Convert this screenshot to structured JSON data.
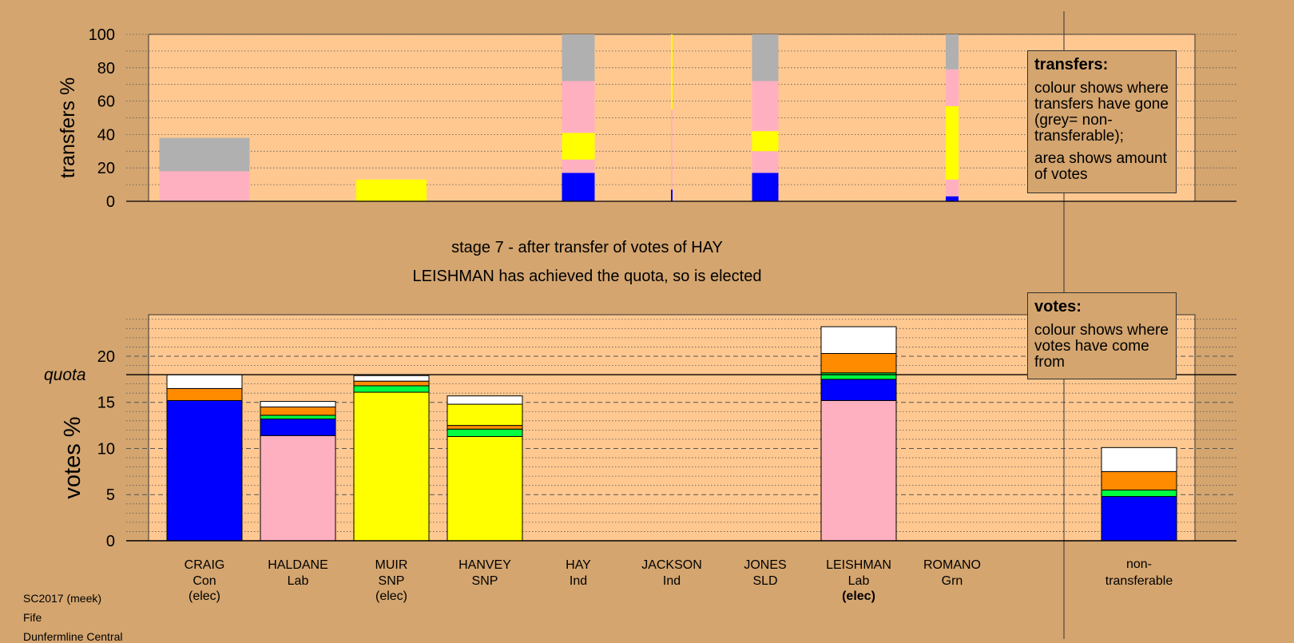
{
  "chart_data": {
    "type": "bar",
    "stage_text": "stage 7 - after transfer of votes of HAY",
    "elected_text": "LEISHMAN has achieved the quota, so is elected",
    "categories": [
      {
        "name": "CRAIG",
        "party": "Con",
        "status": "(elec)",
        "status_bold": false
      },
      {
        "name": "HALDANE",
        "party": "Lab",
        "status": "",
        "status_bold": false
      },
      {
        "name": "MUIR",
        "party": "SNP",
        "status": "(elec)",
        "status_bold": false
      },
      {
        "name": "HANVEY",
        "party": "SNP",
        "status": "",
        "status_bold": false
      },
      {
        "name": "HAY",
        "party": "Ind",
        "status": "",
        "status_bold": false
      },
      {
        "name": "JACKSON",
        "party": "Ind",
        "status": "",
        "status_bold": false
      },
      {
        "name": "JONES",
        "party": "SLD",
        "status": "",
        "status_bold": false
      },
      {
        "name": "LEISHMAN",
        "party": "Lab",
        "status": "(elec)",
        "status_bold": true
      },
      {
        "name": "ROMANO",
        "party": "Grn",
        "status": "",
        "status_bold": false
      }
    ],
    "nontransferable_label": [
      "non-",
      "transferable"
    ],
    "colors": {
      "con": "#0000ff",
      "lab": "#ffb0c0",
      "snp": "#ffff00",
      "lab2": "#00ff40",
      "ind": "#ff8c00",
      "other": "#ffffff",
      "grey": "#b0b0b0",
      "plot_bg": "#ffc890",
      "page_bg": "#d4a56f"
    },
    "transfers_chart": {
      "ylabel": "transfers %",
      "ylim": [
        0,
        100
      ],
      "yticks": [
        0,
        20,
        40,
        60,
        80,
        100
      ],
      "series_order": [
        "con",
        "lab",
        "snp",
        "grey"
      ],
      "columns": [
        {
          "category": "CRAIG",
          "segments": [
            {
              "color": "lab",
              "value": 18
            },
            {
              "color": "grey",
              "value": 20
            }
          ]
        },
        {
          "category": "MUIR",
          "segments": [
            {
              "color": "snp",
              "value": 13
            }
          ]
        },
        {
          "category": "HAY",
          "segments": [
            {
              "color": "con",
              "value": 17
            },
            {
              "color": "lab",
              "value": 8
            },
            {
              "color": "snp",
              "value": 16
            },
            {
              "color": "lab",
              "value": 31
            },
            {
              "color": "grey",
              "value": 28
            }
          ]
        },
        {
          "category": "JACKSON",
          "segments": [
            {
              "color": "con",
              "value": 7
            },
            {
              "color": "lab",
              "value": 48
            },
            {
              "color": "snp",
              "value": 45
            }
          ]
        },
        {
          "category": "JONES",
          "segments": [
            {
              "color": "con",
              "value": 17
            },
            {
              "color": "lab",
              "value": 13
            },
            {
              "color": "snp",
              "value": 12
            },
            {
              "color": "lab",
              "value": 30
            },
            {
              "color": "grey",
              "value": 28
            }
          ]
        },
        {
          "category": "ROMANO",
          "segments": [
            {
              "color": "con",
              "value": 3
            },
            {
              "color": "lab",
              "value": 10
            },
            {
              "color": "snp",
              "value": 44
            },
            {
              "color": "lab",
              "value": 22
            },
            {
              "color": "grey",
              "value": 21
            }
          ]
        }
      ]
    },
    "votes_chart": {
      "ylabel": "votes %",
      "ylim": [
        0,
        24.5
      ],
      "yticks": [
        0,
        5,
        10,
        15,
        20
      ],
      "quota": 18,
      "quota_label": "quota",
      "columns": [
        {
          "category": "CRAIG",
          "segments": [
            {
              "color": "con",
              "value": 15.2
            },
            {
              "color": "ind",
              "value": 1.3
            },
            {
              "color": "other",
              "value": 1.5
            }
          ]
        },
        {
          "category": "HALDANE",
          "segments": [
            {
              "color": "lab",
              "value": 11.4
            },
            {
              "color": "con",
              "value": 1.8
            },
            {
              "color": "lab2",
              "value": 0.4
            },
            {
              "color": "ind",
              "value": 0.9
            },
            {
              "color": "other",
              "value": 0.6
            }
          ]
        },
        {
          "category": "MUIR",
          "segments": [
            {
              "color": "snp",
              "value": 16.1
            },
            {
              "color": "lab2",
              "value": 0.7
            },
            {
              "color": "ind",
              "value": 0.5
            },
            {
              "color": "other",
              "value": 0.6
            }
          ]
        },
        {
          "category": "HANVEY",
          "segments": [
            {
              "color": "snp",
              "value": 11.3
            },
            {
              "color": "lab2",
              "value": 0.8
            },
            {
              "color": "ind",
              "value": 0.4
            },
            {
              "color": "snp",
              "value": 2.3
            },
            {
              "color": "other",
              "value": 0.9
            }
          ]
        },
        {
          "category": "HAY",
          "segments": []
        },
        {
          "category": "JACKSON",
          "segments": []
        },
        {
          "category": "JONES",
          "segments": []
        },
        {
          "category": "LEISHMAN",
          "segments": [
            {
              "color": "lab",
              "value": 15.2
            },
            {
              "color": "con",
              "value": 2.3
            },
            {
              "color": "lab2",
              "value": 0.7
            },
            {
              "color": "ind",
              "value": 2.1
            },
            {
              "color": "other",
              "value": 2.9
            }
          ]
        },
        {
          "category": "ROMANO",
          "segments": []
        },
        {
          "category": "non-transferable",
          "segments": [
            {
              "color": "con",
              "value": 4.8
            },
            {
              "color": "lab2",
              "value": 0.7
            },
            {
              "color": "ind",
              "value": 2.0
            },
            {
              "color": "other",
              "value": 2.6
            }
          ]
        }
      ]
    }
  },
  "legend_transfers": {
    "title": "transfers:",
    "line1": "colour shows where transfers have gone (grey= non-transferable);",
    "line2": "area shows amount of votes"
  },
  "legend_votes": {
    "title": "votes:",
    "line1": "colour shows where votes have come from"
  },
  "footer": {
    "line1": "SC2017 (meek)",
    "line2": "Fife",
    "line3": "Dunfermline Central"
  }
}
